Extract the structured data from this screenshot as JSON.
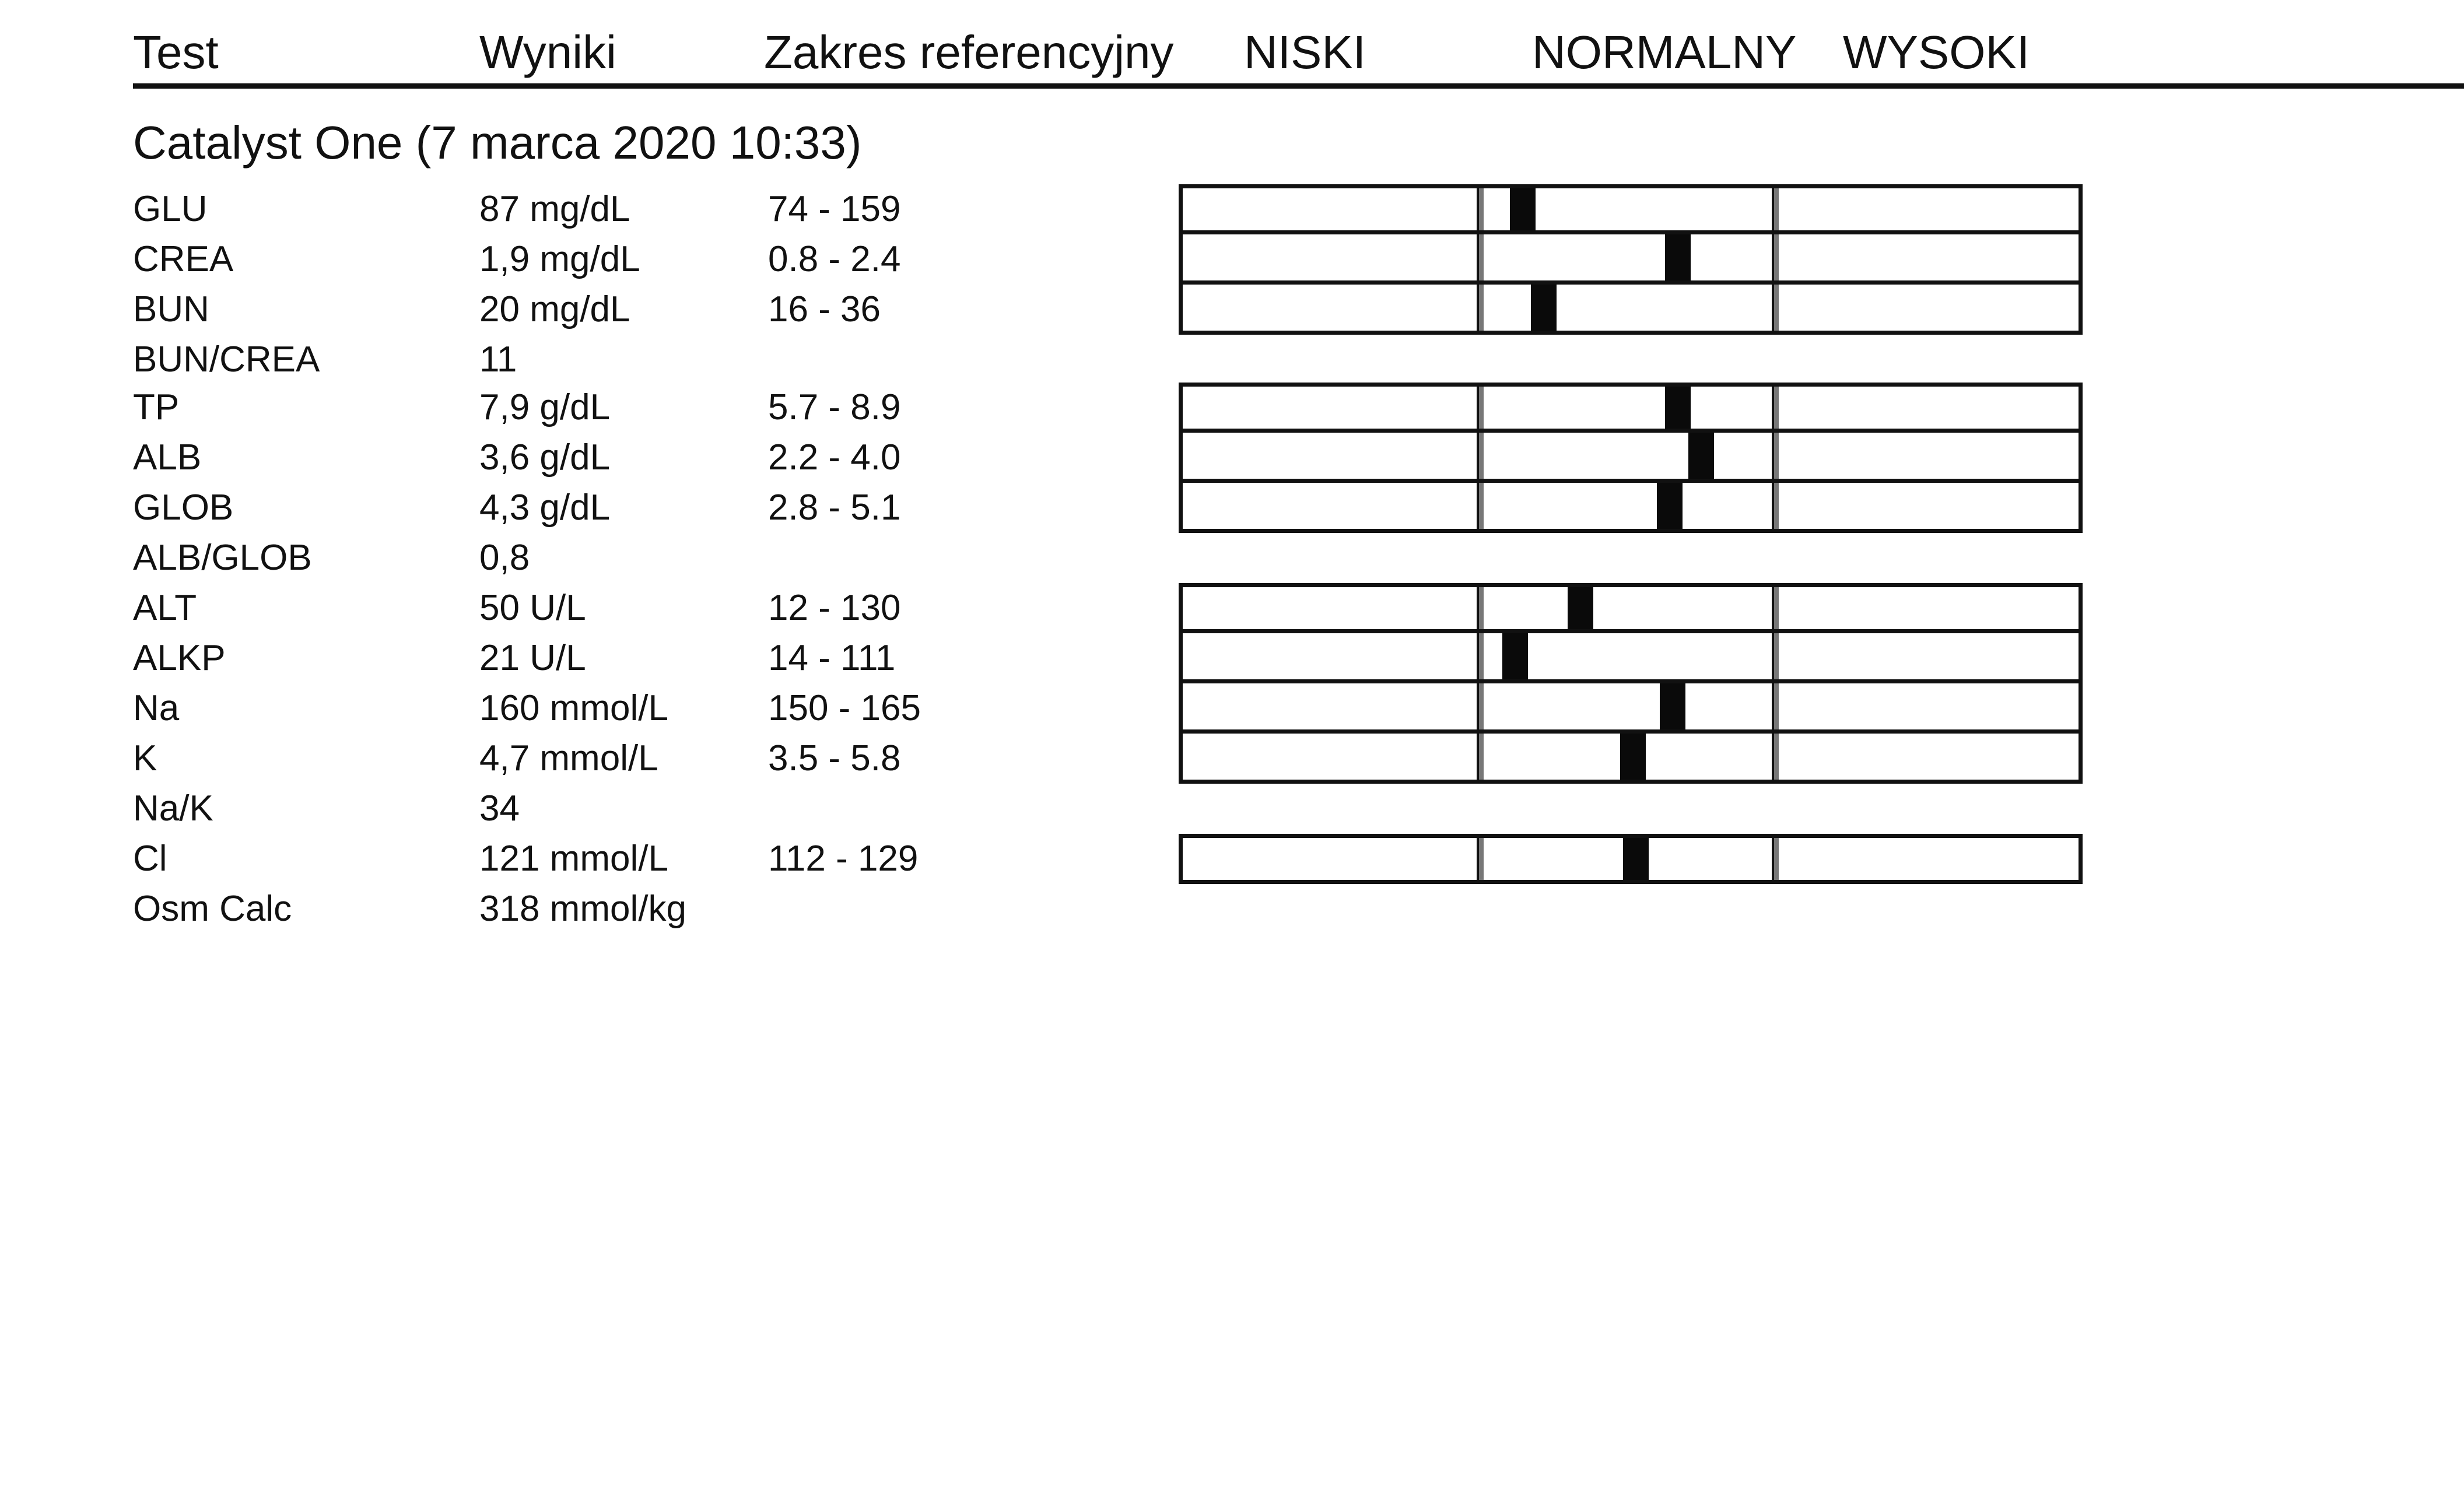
{
  "header": {
    "test": "Test",
    "results": "Wyniki",
    "reference_range": "Zakres referencyjny",
    "low": "NISKI",
    "normal": "NORMALNY",
    "high": "WYSOKI"
  },
  "section": {
    "title": "Catalyst One (7 marca 2020 10:33)"
  },
  "rows": [
    {
      "test": "GLU",
      "result": "87 mg/dL",
      "range": "74 - 159",
      "level": 0.1
    },
    {
      "test": "CREA",
      "result": "1,9 mg/dL",
      "range": "0.8 - 2.4",
      "level": 0.69
    },
    {
      "test": "BUN",
      "result": "20 mg/dL",
      "range": "16 - 36",
      "level": 0.18
    },
    {
      "test": "BUN/CREA",
      "result": "11",
      "range": ""
    },
    {
      "test": "TP",
      "result": "7,9 g/dL",
      "range": "5.7 - 8.9",
      "level": 0.69
    },
    {
      "test": "ALB",
      "result": "3,6 g/dL",
      "range": "2.2 - 4.0",
      "level": 0.78
    },
    {
      "test": "GLOB",
      "result": "4,3 g/dL",
      "range": "2.8 - 5.1",
      "level": 0.66
    },
    {
      "test": "ALB/GLOB",
      "result": "0,8",
      "range": ""
    },
    {
      "test": "ALT",
      "result": "50 U/L",
      "range": "12 - 130",
      "level": 0.32
    },
    {
      "test": "ALKP",
      "result": "21 U/L",
      "range": "14 - 111",
      "level": 0.07
    },
    {
      "test": "Na",
      "result": "160 mmol/L",
      "range": "150 - 165",
      "level": 0.67
    },
    {
      "test": "K",
      "result": "4,7 mmol/L",
      "range": "3.5 - 5.8",
      "level": 0.52
    },
    {
      "test": "Na/K",
      "result": "34",
      "range": ""
    },
    {
      "test": "Cl",
      "result": "121 mmol/L",
      "range": "112 - 129",
      "level": 0.53
    },
    {
      "test": "Osm Calc",
      "result": "318 mmol/kg",
      "range": ""
    }
  ]
}
